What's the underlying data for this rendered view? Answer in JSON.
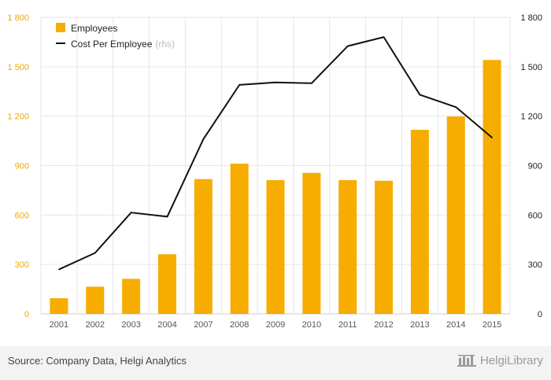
{
  "chart_data": {
    "type": "bar",
    "categories": [
      "2001",
      "2002",
      "2003",
      "2004",
      "2007",
      "2008",
      "2009",
      "2010",
      "2011",
      "2012",
      "2013",
      "2014",
      "2015"
    ],
    "series": [
      {
        "name": "Employees",
        "type": "bar",
        "axis": "left",
        "color": "#f7ac00",
        "values": [
          95,
          165,
          213,
          362,
          818,
          912,
          812,
          856,
          812,
          808,
          1117,
          1198,
          1541
        ]
      },
      {
        "name": "Cost Per Employee",
        "type": "line",
        "axis": "right",
        "color": "#111111",
        "values": [
          270,
          370,
          615,
          590,
          1060,
          1390,
          1405,
          1400,
          1625,
          1680,
          1330,
          1255,
          1070
        ]
      }
    ],
    "left_axis": {
      "min": 0,
      "max": 1800,
      "ticks": [
        "0",
        "300",
        "600",
        "900",
        "1 200",
        "1 500",
        "1 800"
      ]
    },
    "right_axis": {
      "min": 0,
      "max": 1800,
      "ticks": [
        "0",
        "300",
        "600",
        "900",
        "1 200",
        "1 500",
        "1 800"
      ]
    },
    "grid": true,
    "legend": {
      "placement": "top-left",
      "note": "(rhs)"
    },
    "title": "",
    "xlabel": "",
    "ylabel": ""
  },
  "footer": {
    "source": "Source: Company Data, Helgi Analytics",
    "brand": "HelgiLibrary"
  },
  "colors": {
    "accent": "#f7ac00",
    "line": "#111111",
    "grid": "#e6e6e6"
  }
}
